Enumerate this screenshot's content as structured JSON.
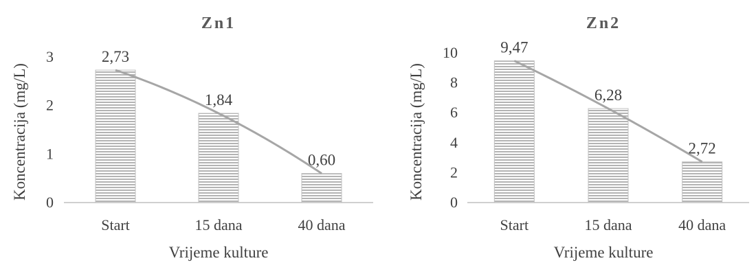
{
  "chart_data": [
    {
      "type": "bar",
      "title": "Zn1",
      "xlabel": "Vrijeme kulture",
      "ylabel": "Koncentracija (mg/L)",
      "categories": [
        "Start",
        "15 dana",
        "40 dana"
      ],
      "values": [
        2.73,
        1.84,
        0.6
      ],
      "data_labels": [
        "2,73",
        "1,84",
        "0,60"
      ],
      "ylim": [
        0,
        3
      ],
      "yticks": [
        0,
        1,
        2,
        3
      ],
      "trendline": "polynomial",
      "bar_fill": "horizontal-stripes",
      "bar_color": "#bfbfbf",
      "trend_color": "#a6a6a6",
      "grid": false,
      "legend": "none"
    },
    {
      "type": "bar",
      "title": "Zn2",
      "xlabel": "Vrijeme kulture",
      "ylabel": "Koncentracija (mg/L)",
      "categories": [
        "Start",
        "15 dana",
        "40 dana"
      ],
      "values": [
        9.47,
        6.28,
        2.72
      ],
      "data_labels": [
        "9,47",
        "6,28",
        "2,72"
      ],
      "ylim": [
        0,
        10
      ],
      "yticks": [
        0,
        2,
        4,
        6,
        8,
        10
      ],
      "trendline": "polynomial",
      "bar_fill": "horizontal-stripes",
      "bar_color": "#bfbfbf",
      "trend_color": "#a6a6a6",
      "grid": false,
      "legend": "none"
    }
  ]
}
